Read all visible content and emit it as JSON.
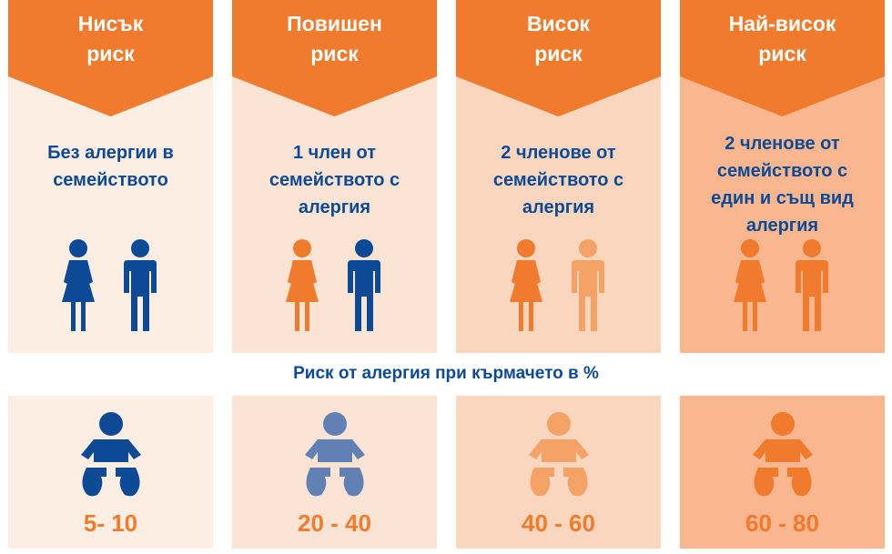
{
  "colors": {
    "banner": "#f07b2c",
    "navy": "#0d4a95",
    "orange_figure": "#f07b2c",
    "light_orange_figure": "#f5a266",
    "baby_blue": "#6181b5",
    "panel_backgrounds": [
      "#fdeee4",
      "#fce4d5",
      "#fbd6bf",
      "#f9b68f"
    ]
  },
  "caption": "Риск от алергия при кърмачето в %",
  "columns": [
    {
      "risk_title": [
        "Нисък",
        "риск"
      ],
      "description": [
        "Без алергии в",
        "семейството"
      ],
      "value": "5- 10",
      "woman_color": "navy",
      "man_color": "navy",
      "baby_color": "navy",
      "icons": [
        "woman-icon",
        "man-icon",
        "baby-icon"
      ]
    },
    {
      "risk_title": [
        "Повишен",
        "риск"
      ],
      "description": [
        "1 член от",
        "семейството с",
        "алергия"
      ],
      "value": "20 - 40",
      "woman_color": "orange",
      "man_color": "navy",
      "baby_color": "blue",
      "icons": [
        "woman-icon",
        "man-icon",
        "baby-icon"
      ]
    },
    {
      "risk_title": [
        "Висок",
        "риск"
      ],
      "description": [
        "2 членове от",
        "семейството с",
        "алергия"
      ],
      "value": "40 - 60",
      "woman_color": "orange",
      "man_color": "light-orange",
      "baby_color": "light-orange",
      "icons": [
        "woman-icon",
        "man-icon",
        "baby-icon"
      ]
    },
    {
      "risk_title": [
        "Най-висок",
        "риск"
      ],
      "description": [
        "2 членове от",
        "семейството с",
        "един и същ вид",
        "алергия"
      ],
      "value": "60 - 80",
      "woman_color": "orange",
      "man_color": "orange",
      "baby_color": "orange",
      "icons": [
        "woman-icon",
        "man-icon",
        "baby-icon"
      ]
    }
  ]
}
